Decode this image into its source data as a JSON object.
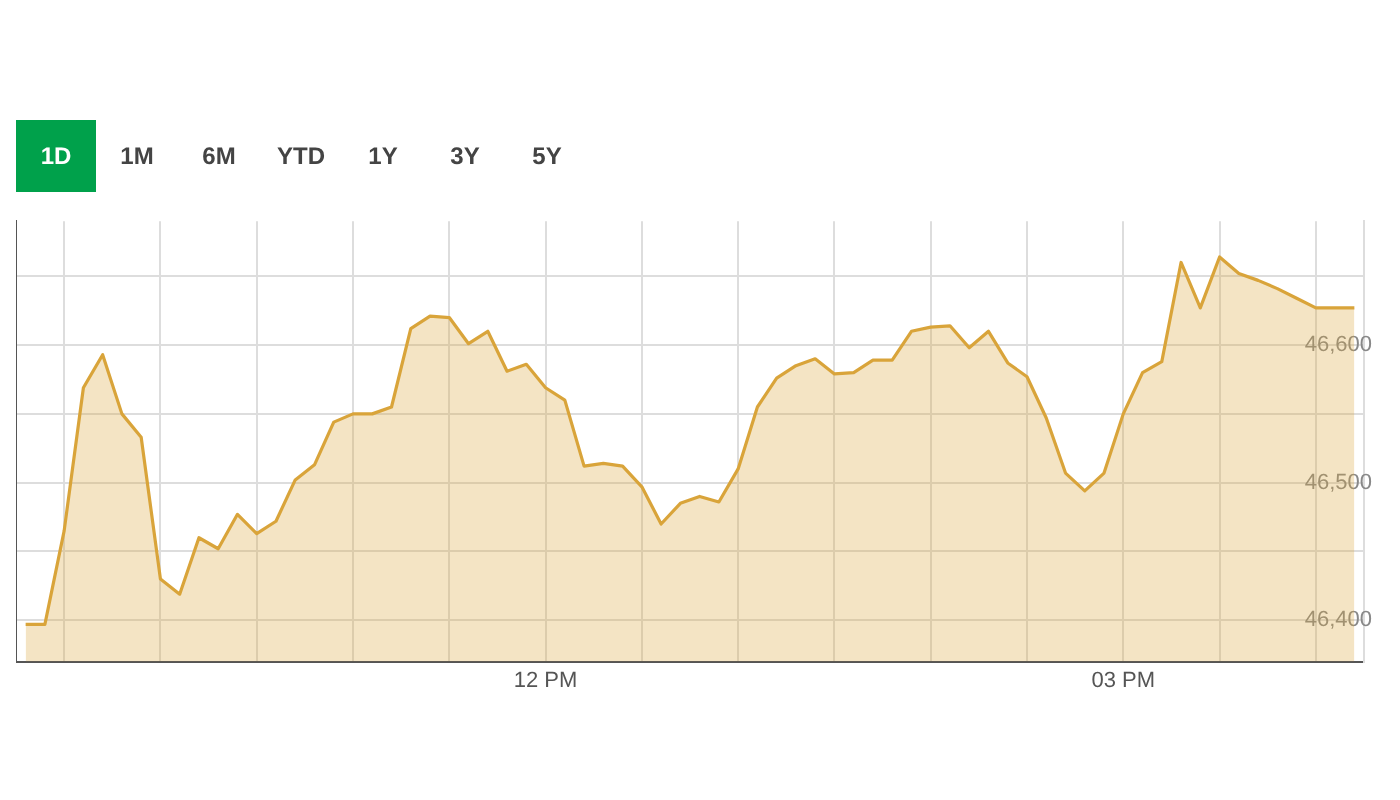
{
  "chart_data": {
    "type": "area",
    "annotations": [
      "1D",
      "1M",
      "6M",
      "YTD",
      "1Y",
      "3Y",
      "5Y"
    ],
    "categories": [
      null,
      null,
      null,
      null,
      null,
      null,
      null,
      null,
      null,
      null,
      null,
      null,
      null,
      null,
      null,
      null,
      null,
      null,
      null,
      null,
      null,
      null,
      null,
      null,
      null,
      null,
      null,
      "12 PM",
      null,
      null,
      null,
      null,
      null,
      null,
      null,
      null,
      null,
      null,
      null,
      null,
      null,
      null,
      null,
      null,
      null,
      null,
      null,
      null,
      null,
      null,
      null,
      null,
      null,
      null,
      null,
      null,
      null,
      "03 PM",
      null,
      null,
      null,
      null,
      null,
      null,
      null,
      null,
      null,
      null,
      null,
      null
    ],
    "series": [
      {
        "color": "#d9a43a",
        "values": [
          46397,
          46397,
          46465,
          46569,
          46593,
          46550,
          46533,
          46430,
          46419,
          46460,
          46452,
          46477,
          46463,
          46472,
          46502,
          46513,
          46544,
          46550,
          46550,
          46555,
          46612,
          46621,
          46620,
          46601,
          46610,
          46581,
          46586,
          46569,
          46560,
          46512,
          46514,
          46512,
          46497,
          46470,
          46485,
          46490,
          46486,
          46510,
          46555,
          46576,
          46585,
          46590,
          46579,
          46580,
          46589,
          46589,
          46610,
          46613,
          46614,
          46598,
          46610,
          46587,
          46577,
          46547,
          46507,
          46494,
          46507,
          46550,
          46580,
          46588,
          46660,
          46627,
          46664,
          46652,
          46647,
          46641,
          46634,
          46627,
          46627,
          46627
        ]
      }
    ],
    "ylim": [
      46370,
      46690
    ],
    "yticks": [
      {
        "value": 46400,
        "label": "46,400"
      },
      {
        "value": 46450,
        "label": null
      },
      {
        "value": 46500,
        "label": "46,500"
      },
      {
        "value": 46550,
        "label": null
      },
      {
        "value": 46600,
        "label": "46,600"
      },
      {
        "value": 46650,
        "label": null
      }
    ],
    "grid": true
  }
}
